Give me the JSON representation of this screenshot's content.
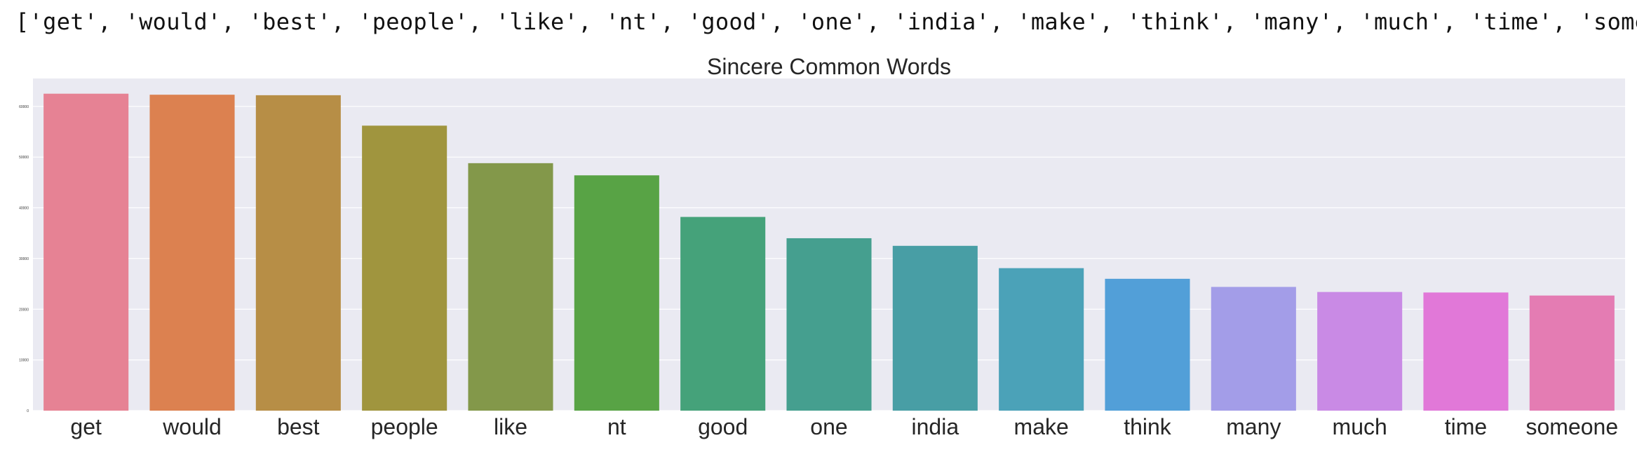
{
  "output": {
    "text": "['get', 'would', 'best', 'people', 'like', 'nt', 'good', 'one', 'india', 'make', 'think', 'many', 'much', 'time', 'someone']"
  },
  "chart_data": {
    "type": "bar",
    "title": "Sincere Common Words",
    "xlabel": "",
    "ylabel": "",
    "categories": [
      "get",
      "would",
      "best",
      "people",
      "like",
      "nt",
      "good",
      "one",
      "india",
      "make",
      "think",
      "many",
      "much",
      "time",
      "someone"
    ],
    "values": [
      62500,
      62300,
      62200,
      56200,
      48800,
      46400,
      38200,
      34000,
      32500,
      28100,
      26000,
      24400,
      23400,
      23300,
      22700
    ],
    "colors": [
      "#e68294",
      "#dc8150",
      "#b78e46",
      "#a0953e",
      "#83984a",
      "#58a345",
      "#45a27a",
      "#459f8f",
      "#489ea5",
      "#4ba2b8",
      "#529fd8",
      "#a39de8",
      "#c98ae5",
      "#e178d8",
      "#e47cb3"
    ],
    "yticks": [
      0,
      10000,
      20000,
      30000,
      40000,
      50000,
      60000
    ],
    "ylim": [
      0,
      65500
    ],
    "grid": true,
    "background": "#eaeaf2"
  }
}
